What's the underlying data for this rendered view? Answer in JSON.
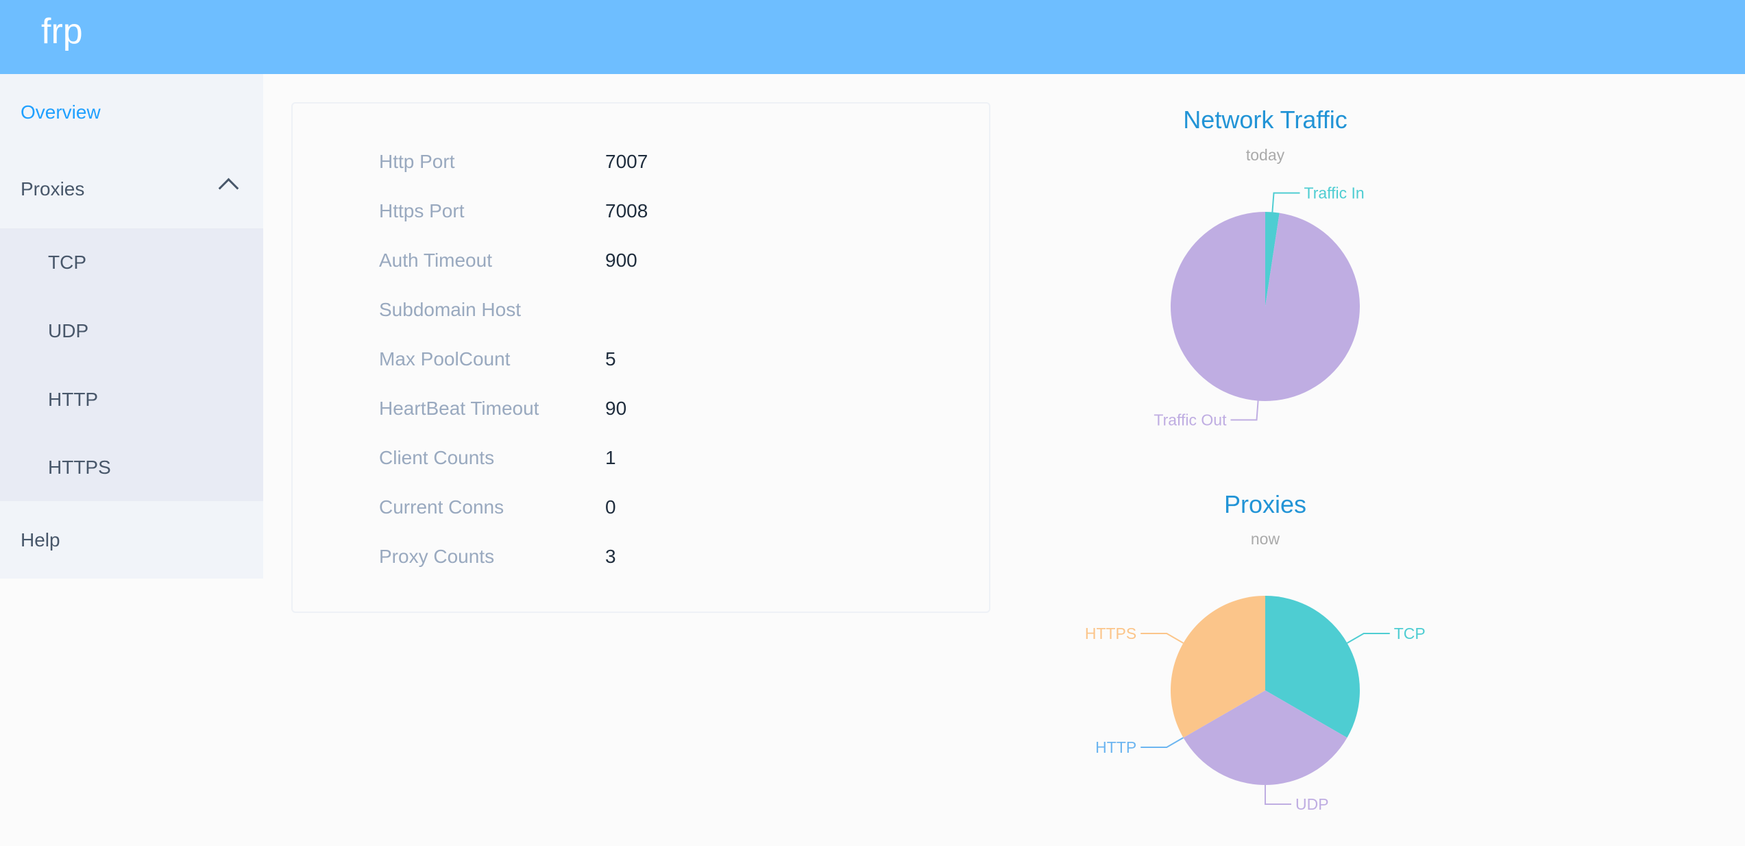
{
  "header": {
    "logo": "frp",
    "color": "#6ebeff"
  },
  "sidebar": {
    "overview": "Overview",
    "proxies": "Proxies",
    "proxies_icon": "chevron-up-icon",
    "sub": [
      "TCP",
      "UDP",
      "HTTP",
      "HTTPS"
    ],
    "help": "Help"
  },
  "server_info": [
    {
      "label": "Http Port",
      "value": "7007"
    },
    {
      "label": "Https Port",
      "value": "7008"
    },
    {
      "label": "Auth Timeout",
      "value": "900"
    },
    {
      "label": "Subdomain Host",
      "value": ""
    },
    {
      "label": "Max PoolCount",
      "value": "5"
    },
    {
      "label": "HeartBeat Timeout",
      "value": "90"
    },
    {
      "label": "Client Counts",
      "value": "1"
    },
    {
      "label": "Current Conns",
      "value": "0"
    },
    {
      "label": "Proxy Counts",
      "value": "3"
    }
  ],
  "chart_data": [
    {
      "type": "pie",
      "title": "Network Traffic",
      "subtitle": "today",
      "slices": [
        {
          "name": "Traffic In",
          "value": 2.4,
          "color": "#4ecdd2"
        },
        {
          "name": "Traffic Out",
          "value": 97.6,
          "color": "#bfade2"
        }
      ]
    },
    {
      "type": "pie",
      "title": "Proxies",
      "subtitle": "now",
      "slices": [
        {
          "name": "TCP",
          "value": 1,
          "color": "#4ecdd2"
        },
        {
          "name": "UDP",
          "value": 1,
          "color": "#bfade2"
        },
        {
          "name": "HTTP",
          "value": 0,
          "color": "#6cb5f0"
        },
        {
          "name": "HTTPS",
          "value": 1,
          "color": "#fbc58a"
        }
      ]
    }
  ],
  "colors": {
    "title": "#2294d6",
    "subtitle": "#aaaaaa",
    "accent": "#20a0ff"
  }
}
